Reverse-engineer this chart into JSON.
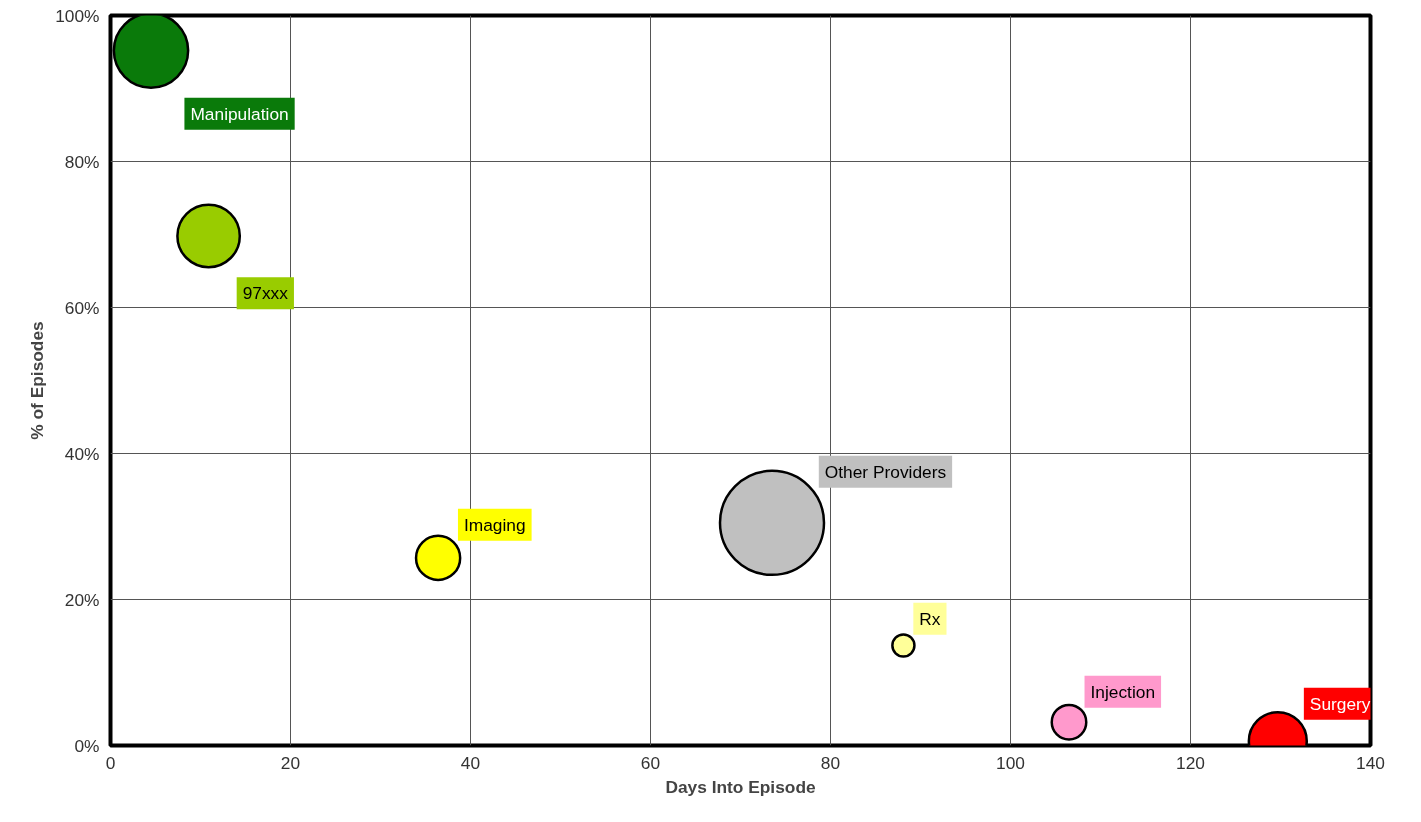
{
  "chart_data": {
    "type": "bubble",
    "xlabel": "Days Into Episode",
    "ylabel": "% of Episodes",
    "xlim": [
      0,
      140
    ],
    "ylim": [
      0,
      100
    ],
    "xticks": [
      0,
      20,
      40,
      60,
      80,
      100,
      120,
      140
    ],
    "yticks": [
      {
        "value": 0,
        "label": "0%"
      },
      {
        "value": 20,
        "label": "20%"
      },
      {
        "value": 40,
        "label": "40%"
      },
      {
        "value": 60,
        "label": "60%"
      },
      {
        "value": 80,
        "label": "80%"
      },
      {
        "value": 100,
        "label": "100%"
      }
    ],
    "grid": true,
    "legend": false,
    "series": [
      {
        "name": "Manipulation",
        "color": "#0a7a0a",
        "x": [
          4.5
        ],
        "values": [
          95.2
        ],
        "sizes": [
          0.51
        ]
      },
      {
        "name": "97xxx",
        "color": "#99cc00",
        "x": [
          10.9
        ],
        "values": [
          69.8
        ],
        "sizes": [
          0.36
        ]
      },
      {
        "name": "Imaging",
        "color": "#ffff00",
        "x": [
          36.4
        ],
        "values": [
          25.7
        ],
        "sizes": [
          0.18
        ]
      },
      {
        "name": "Other Providers",
        "color": "#c0c0c0",
        "x": [
          73.5
        ],
        "values": [
          30.5
        ],
        "sizes": [
          1
        ]
      },
      {
        "name": "Rx",
        "color": "#ffff99",
        "x": [
          88.1
        ],
        "values": [
          13.7
        ],
        "sizes": [
          0.045
        ]
      },
      {
        "name": "Injection",
        "color": "#ff99cc",
        "x": [
          106.5
        ],
        "values": [
          3.2
        ],
        "sizes": [
          0.11
        ]
      },
      {
        "name": "Surgery",
        "color": "#ff0000",
        "x": [
          129.7
        ],
        "values": [
          0.6
        ],
        "sizes": [
          0.31
        ]
      }
    ]
  }
}
